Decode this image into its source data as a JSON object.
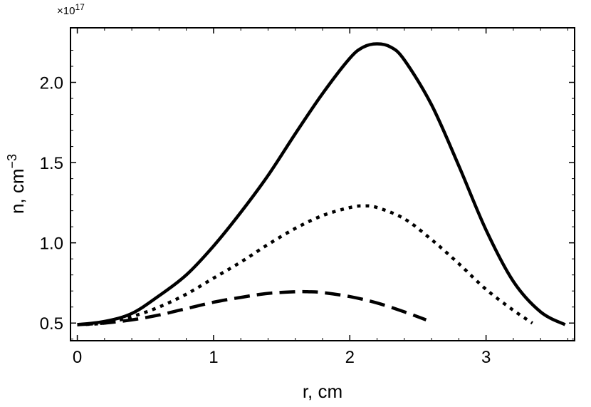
{
  "chart_data": {
    "type": "line",
    "title": "",
    "xlabel": "r, cm",
    "ylabel_base": "n, cm",
    "ylabel_exponent": "−3",
    "y_multiplier_base": "×10",
    "y_multiplier_exponent": "17",
    "xlim": [
      -0.05,
      3.65
    ],
    "ylim": [
      0.39,
      2.34
    ],
    "x_ticks": [
      0,
      1,
      2,
      3
    ],
    "x_tick_labels": [
      "0",
      "1",
      "2",
      "3"
    ],
    "y_ticks": [
      0.5,
      1.0,
      1.5,
      2.0
    ],
    "y_tick_labels": [
      "0.5",
      "1.0",
      "1.5",
      "2.0"
    ],
    "grid": false,
    "legend": "none",
    "series": [
      {
        "style": "solid",
        "x": [
          0,
          0.2,
          0.4,
          0.6,
          0.8,
          1.0,
          1.2,
          1.4,
          1.6,
          1.8,
          2.0,
          2.1,
          2.2,
          2.3,
          2.4,
          2.6,
          2.8,
          3.0,
          3.2,
          3.4,
          3.58
        ],
        "y": [
          0.49,
          0.51,
          0.56,
          0.67,
          0.8,
          0.98,
          1.19,
          1.42,
          1.68,
          1.93,
          2.15,
          2.22,
          2.24,
          2.22,
          2.14,
          1.86,
          1.48,
          1.08,
          0.76,
          0.57,
          0.49
        ]
      },
      {
        "style": "dotted",
        "x": [
          0,
          0.2,
          0.4,
          0.6,
          0.8,
          1.0,
          1.2,
          1.4,
          1.6,
          1.8,
          2.0,
          2.1,
          2.2,
          2.4,
          2.6,
          2.8,
          3.0,
          3.2,
          3.34
        ],
        "y": [
          0.49,
          0.5,
          0.54,
          0.6,
          0.68,
          0.78,
          0.88,
          0.99,
          1.09,
          1.17,
          1.22,
          1.23,
          1.22,
          1.15,
          1.02,
          0.87,
          0.71,
          0.58,
          0.5
        ]
      },
      {
        "style": "dashed",
        "x": [
          0,
          0.2,
          0.4,
          0.6,
          0.8,
          1.0,
          1.2,
          1.4,
          1.6,
          1.7,
          1.8,
          2.0,
          2.2,
          2.4,
          2.56
        ],
        "y": [
          0.49,
          0.5,
          0.52,
          0.55,
          0.59,
          0.63,
          0.66,
          0.685,
          0.695,
          0.695,
          0.69,
          0.665,
          0.625,
          0.57,
          0.52
        ]
      }
    ]
  }
}
